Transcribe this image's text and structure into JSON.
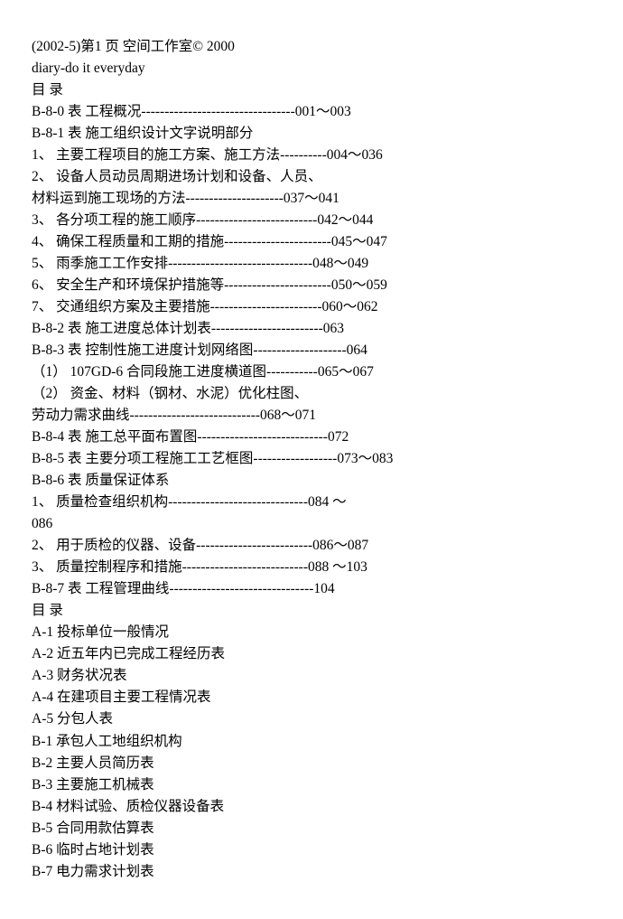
{
  "header1": "(2002-5)第1 页 空间工作室© 2000",
  "header2": "diary-do it everyday",
  "toc_title": "目 录",
  "lines": [
    "B-8-0 表 工程概况---------------------------------001～003",
    "B-8-1 表 施工组织设计文字说明部分",
    "1、 主要工程项目的施工方案、施工方法----------004～036",
    "2、 设备人员动员周期进场计划和设备、人员、",
    "材料运到施工现场的方法---------------------037～041",
    "3、 各分项工程的施工顺序--------------------------042～044",
    "4、 确保工程质量和工期的措施-----------------------045～047",
    "5、 雨季施工工作安排-------------------------------048～049",
    "6、 安全生产和环境保护措施等-----------------------050～059",
    "7、 交通组织方案及主要措施------------------------060～062",
    "B-8-2 表 施工进度总体计划表------------------------063",
    "B-8-3 表 控制性施工进度计划网络图--------------------064",
    "（1） 107GD-6 合同段施工进度横道图-----------065～067",
    "（2） 资金、材料（钢材、水泥）优化柱图、",
    "劳动力需求曲线----------------------------068～071",
    "B-8-4 表 施工总平面布置图----------------------------072",
    "B-8-5 表 主要分项工程施工工艺框图------------------073～083",
    "B-8-6 表 质量保证体系",
    "1、 质量检查组织机构------------------------------084 ～",
    "086",
    "2、 用于质检的仪器、设备-------------------------086～087",
    "3、 质量控制程序和措施---------------------------088 ～103",
    "B-8-7 表 工程管理曲线-------------------------------104"
  ],
  "toc_title2": "目 录",
  "list2": [
    "A-1 投标单位一般情况",
    "A-2 近五年内已完成工程经历表",
    "A-3 财务状况表",
    "A-4 在建项目主要工程情况表",
    "A-5 分包人表",
    "B-1 承包人工地组织机构",
    "B-2 主要人员简历表",
    "B-3 主要施工机械表",
    "B-4 材料试验、质检仪器设备表",
    "B-5 合同用款估算表",
    "B-6 临时占地计划表",
    "B-7 电力需求计划表"
  ],
  "text_color": "#000000",
  "background_color": "#ffffff",
  "font_size": 15.5
}
